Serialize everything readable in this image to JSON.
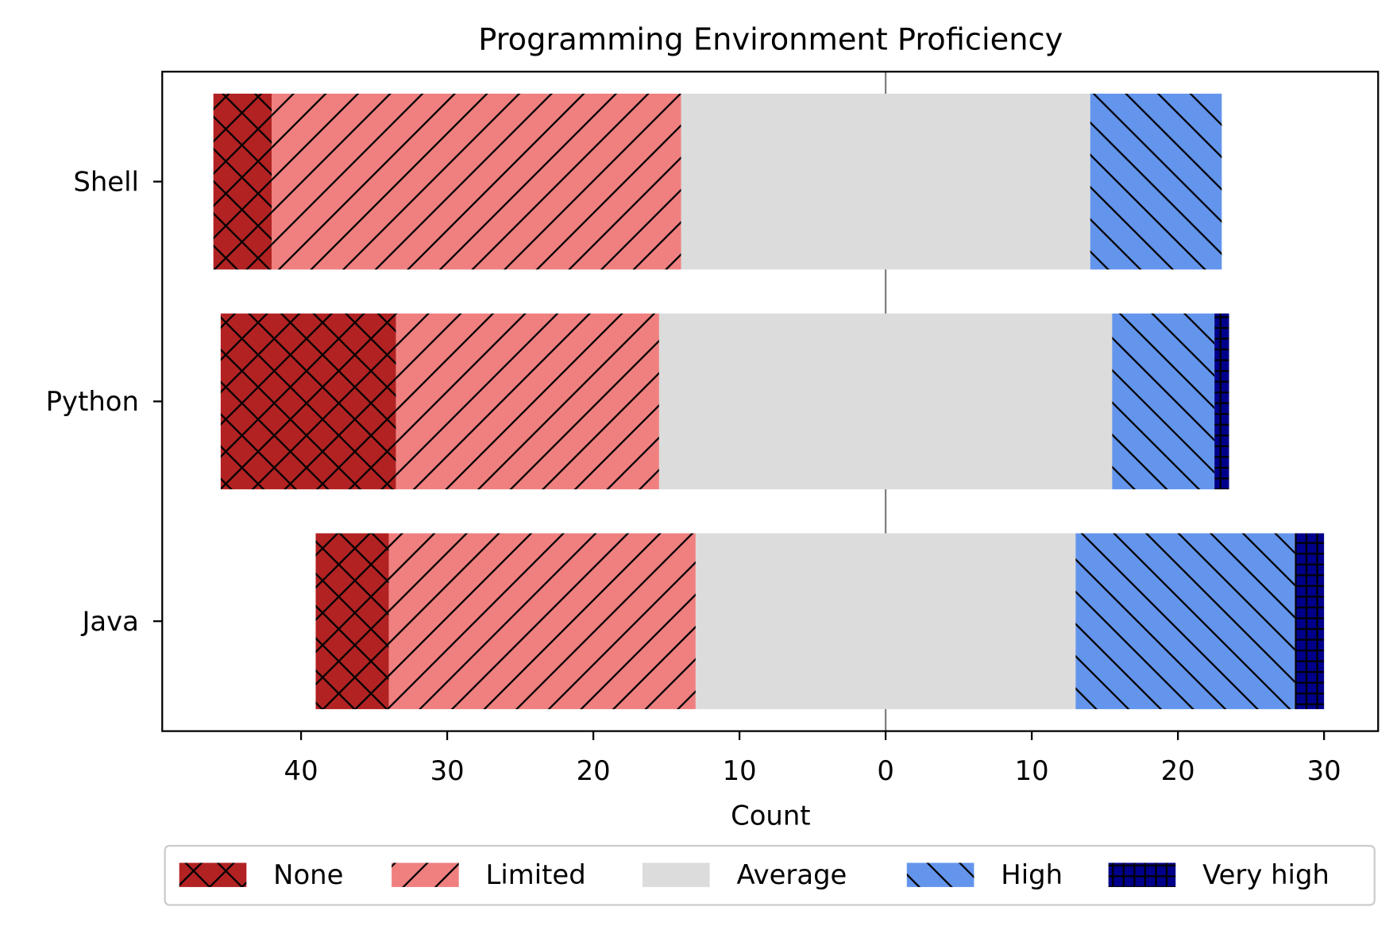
{
  "chart_data": {
    "type": "diverging-bar",
    "title": "Programming Environment Proficiency",
    "xlabel": "Count",
    "categories": [
      "Shell",
      "Python",
      "Java"
    ],
    "series": [
      {
        "name": "None",
        "color": "#b22222",
        "hatch": "xx",
        "side": "left",
        "values": [
          4,
          12,
          5
        ]
      },
      {
        "name": "Limited",
        "color": "#f08080",
        "hatch": "//",
        "side": "left",
        "values": [
          28,
          18,
          21
        ]
      },
      {
        "name": "Average",
        "color": "#dcdcdc",
        "hatch": "",
        "side": "center",
        "values": [
          28,
          31,
          26
        ]
      },
      {
        "name": "High",
        "color": "#6495ed",
        "hatch": "\\\\",
        "side": "right",
        "values": [
          9,
          7,
          15
        ]
      },
      {
        "name": "Very high",
        "color": "#00008b",
        "hatch": "+",
        "side": "right",
        "values": [
          0,
          1,
          2
        ]
      }
    ],
    "xlim": [
      -49.5,
      33.7
    ],
    "xticks": [
      {
        "value": -40,
        "label": "40"
      },
      {
        "value": -30,
        "label": "30"
      },
      {
        "value": -20,
        "label": "20"
      },
      {
        "value": -10,
        "label": "10"
      },
      0,
      10,
      20,
      30
    ],
    "legend": "bottom"
  }
}
